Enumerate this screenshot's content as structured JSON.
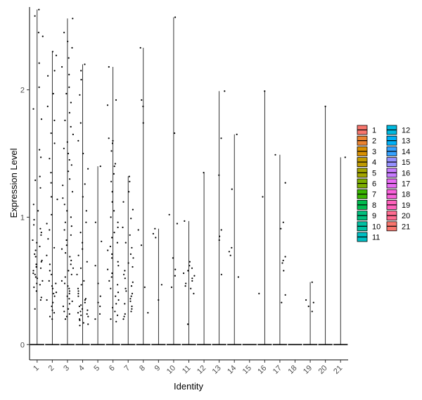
{
  "chart_data": {
    "type": "violin",
    "title": "",
    "xlabel": "Identity",
    "ylabel": "Expression Level",
    "ylim": [
      -0.12,
      2.65
    ],
    "yticks": [
      0,
      1,
      2
    ],
    "grid": false,
    "jitter_points": true,
    "legend_position": "right",
    "legend_columns": 2,
    "categories": [
      "1",
      "2",
      "3",
      "4",
      "5",
      "6",
      "7",
      "8",
      "9",
      "10",
      "11",
      "12",
      "13",
      "14",
      "15",
      "16",
      "17",
      "18",
      "19",
      "20",
      "21"
    ],
    "colors": [
      "#F8766D",
      "#EA8331",
      "#D89000",
      "#C09B00",
      "#A3A500",
      "#7CAE00",
      "#39B600",
      "#00BB4E",
      "#00BF7D",
      "#00C1A3",
      "#00BFC4",
      "#00BAE0",
      "#00B0F6",
      "#35A2FF",
      "#9590FF",
      "#C77CFF",
      "#E76BF3",
      "#FA62DB",
      "#FF62BC",
      "#FF6C91",
      "#F8766D"
    ],
    "max_values": [
      2.63,
      2.3,
      2.56,
      2.2,
      1.4,
      2.18,
      1.32,
      2.33,
      0.91,
      2.57,
      0.97,
      1.35,
      1.99,
      1.65,
      0,
      1.99,
      1.49,
      0,
      0.49,
      1.87,
      1.47
    ],
    "values_list": [
      [
        2.63,
        2.58,
        2.45,
        2.42,
        2.21,
        2.02,
        1.85,
        1.77,
        1.53,
        1.47,
        1.32,
        1.29,
        1.23,
        1.1,
        1.05,
        0.98,
        0.94,
        0.91,
        0.88,
        0.86,
        0.82,
        0.8,
        0.77,
        0.74,
        0.71,
        0.69,
        0.66,
        0.65,
        0.63,
        0.61,
        0.6,
        0.58,
        0.56,
        0.55,
        0.53,
        0.52,
        0.5,
        0.48,
        0.47,
        0.45,
        0.42,
        0.37,
        0.35,
        0.28
      ],
      [
        2.3,
        2.27,
        2.15,
        2.11,
        1.97,
        1.87,
        1.76,
        1.66,
        1.58,
        1.46,
        1.35,
        1.27,
        1.16,
        1.14,
        1.02,
        0.95,
        0.9,
        0.83,
        0.76,
        0.7,
        0.63,
        0.58,
        0.55,
        0.5,
        0.48,
        0.46,
        0.44,
        0.41,
        0.4,
        0.38,
        0.35,
        0.33,
        0.3,
        0.27,
        0.25,
        0.22,
        0.2
      ],
      [
        2.56,
        2.45,
        2.38,
        2.33,
        2.25,
        2.18,
        2.12,
        2.02,
        1.97,
        1.9,
        1.82,
        1.76,
        1.71,
        1.65,
        1.59,
        1.54,
        1.5,
        1.45,
        1.41,
        1.36,
        1.3,
        1.25,
        1.2,
        1.15,
        1.1,
        1.05,
        1.0,
        0.96,
        0.93,
        0.9,
        0.86,
        0.82,
        0.78,
        0.75,
        0.72,
        0.69,
        0.66,
        0.63,
        0.6,
        0.58,
        0.55,
        0.53,
        0.5,
        0.48,
        0.46,
        0.44,
        0.42,
        0.4,
        0.38,
        0.36,
        0.34,
        0.32,
        0.3,
        0.28,
        0.26,
        0.24,
        0.22,
        0.2
      ],
      [
        2.2,
        2.15,
        2.08,
        1.96,
        1.74,
        1.6,
        1.5,
        1.38,
        1.26,
        1.16,
        1.05,
        0.96,
        0.88,
        0.8,
        0.75,
        0.7,
        0.65,
        0.6,
        0.55,
        0.5,
        0.47,
        0.44,
        0.42,
        0.4,
        0.38,
        0.36,
        0.35,
        0.33,
        0.31,
        0.3,
        0.28,
        0.27,
        0.26,
        0.25,
        0.24,
        0.23,
        0.22,
        0.2,
        0.19,
        0.17,
        0.16,
        0.15
      ],
      [
        1.4,
        0.96,
        0.81,
        0.62,
        0.48,
        0.38,
        0.33,
        0.3,
        0.24,
        0.2
      ],
      [
        2.18,
        1.92,
        1.88,
        1.62,
        1.6,
        1.58,
        1.52,
        1.42,
        1.4,
        1.34,
        1.28,
        1.2,
        1.12,
        1.05,
        1.0,
        0.96,
        0.92,
        0.88,
        0.84,
        0.8,
        0.77,
        0.74,
        0.71,
        0.68,
        0.65,
        0.62,
        0.59,
        0.56,
        0.53,
        0.5,
        0.47,
        0.44,
        0.41,
        0.38,
        0.35,
        0.32,
        0.29,
        0.26,
        0.23,
        0.2,
        0.18
      ],
      [
        1.32,
        1.28,
        1.2,
        1.12,
        1.06,
        0.99,
        0.92,
        0.86,
        0.8,
        0.76,
        0.71,
        0.68,
        0.64,
        0.61,
        0.58,
        0.55,
        0.52,
        0.49,
        0.46,
        0.44,
        0.42,
        0.4,
        0.38,
        0.36,
        0.34,
        0.32,
        0.3,
        0.28,
        0.26,
        0.24,
        0.22,
        0.2
      ],
      [
        2.33,
        1.92,
        1.87,
        1.74,
        0.9,
        0.78,
        0.45,
        0.25
      ],
      [
        0.91,
        0.87,
        0.84,
        0.47,
        0.35
      ],
      [
        2.57,
        1.66,
        1.02,
        0.95,
        0.68,
        0.59,
        0.54,
        0.45
      ],
      [
        0.97,
        0.65,
        0.62,
        0.6,
        0.58,
        0.56,
        0.54,
        0.52,
        0.5,
        0.48,
        0.46,
        0.44,
        0.4,
        0.16
      ],
      [
        1.35
      ],
      [
        1.99,
        1.62,
        1.33,
        0.9,
        0.85,
        0.82,
        0.55
      ],
      [
        1.65,
        1.22,
        0.76,
        0.73,
        0.7,
        0.53
      ],
      [],
      [
        1.99,
        1.16,
        0.4
      ],
      [
        1.49,
        1.27,
        0.96,
        0.91,
        0.69,
        0.66,
        0.64,
        0.58,
        0.39,
        0.33
      ],
      [],
      [
        0.49,
        0.35,
        0.33,
        0.3,
        0.26
      ],
      [
        1.87
      ],
      [
        1.47
      ]
    ]
  }
}
